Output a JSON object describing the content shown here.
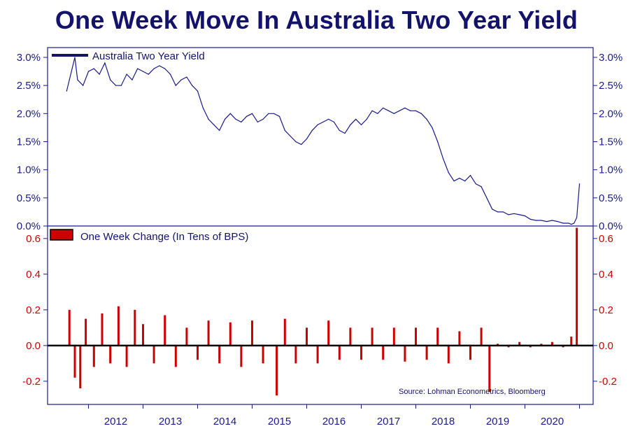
{
  "title": "One Week Move In Australia Two Year Yield",
  "source": "Source: Lohman Econometrics, Bloomberg",
  "colors": {
    "title": "#13136b",
    "axis": "#1a1a8c",
    "yield_line": "#1a1a8c",
    "bars": "#cc0000",
    "zero_line": "#000000",
    "lower_tick_labels": "#cc0000"
  },
  "chart_data": [
    {
      "type": "line",
      "panel": "top",
      "legend": "Australia Two Year Yield",
      "legend_position": "top-left",
      "ylim": [
        0,
        3.0
      ],
      "yticks": [
        "0.0%",
        "0.5%",
        "1.0%",
        "1.5%",
        "2.0%",
        "2.5%",
        "3.0%"
      ],
      "xlim": [
        2011.25,
        2021.25
      ],
      "xticks": [
        "2012",
        "2013",
        "2014",
        "2015",
        "2016",
        "2017",
        "2018",
        "2019",
        "2020"
      ],
      "x": [
        2011.6,
        2011.65,
        2011.7,
        2011.75,
        2011.8,
        2011.9,
        2012.0,
        2012.1,
        2012.2,
        2012.3,
        2012.4,
        2012.5,
        2012.6,
        2012.7,
        2012.8,
        2012.9,
        2013.0,
        2013.1,
        2013.2,
        2013.3,
        2013.4,
        2013.5,
        2013.6,
        2013.7,
        2013.8,
        2013.9,
        2014.0,
        2014.1,
        2014.2,
        2014.3,
        2014.4,
        2014.5,
        2014.6,
        2014.7,
        2014.8,
        2014.9,
        2015.0,
        2015.1,
        2015.2,
        2015.3,
        2015.4,
        2015.5,
        2015.6,
        2015.7,
        2015.8,
        2015.9,
        2016.0,
        2016.1,
        2016.2,
        2016.3,
        2016.4,
        2016.5,
        2016.6,
        2016.7,
        2016.8,
        2016.9,
        2017.0,
        2017.1,
        2017.2,
        2017.3,
        2017.4,
        2017.5,
        2017.6,
        2017.7,
        2017.8,
        2017.9,
        2018.0,
        2018.1,
        2018.2,
        2018.3,
        2018.4,
        2018.5,
        2018.6,
        2018.7,
        2018.8,
        2018.9,
        2019.0,
        2019.1,
        2019.2,
        2019.3,
        2019.4,
        2019.5,
        2019.6,
        2019.7,
        2019.8,
        2019.9,
        2020.0,
        2020.1,
        2020.2,
        2020.3,
        2020.4,
        2020.5,
        2020.6,
        2020.7,
        2020.8,
        2020.85,
        2020.9,
        2020.95,
        2021.0
      ],
      "y": [
        2.4,
        2.6,
        2.8,
        3.0,
        2.6,
        2.5,
        2.75,
        2.8,
        2.7,
        2.9,
        2.6,
        2.5,
        2.5,
        2.7,
        2.6,
        2.8,
        2.75,
        2.7,
        2.8,
        2.85,
        2.8,
        2.7,
        2.5,
        2.6,
        2.65,
        2.5,
        2.4,
        2.1,
        1.9,
        1.8,
        1.7,
        1.9,
        2.0,
        1.9,
        1.85,
        1.95,
        2.0,
        1.85,
        1.9,
        2.0,
        2.0,
        1.95,
        1.7,
        1.6,
        1.5,
        1.45,
        1.55,
        1.7,
        1.8,
        1.85,
        1.9,
        1.85,
        1.7,
        1.65,
        1.8,
        1.9,
        1.8,
        1.9,
        2.05,
        2.0,
        2.1,
        2.05,
        2.0,
        2.05,
        2.1,
        2.05,
        2.05,
        2.0,
        1.9,
        1.75,
        1.5,
        1.2,
        0.95,
        0.8,
        0.85,
        0.8,
        0.9,
        0.75,
        0.7,
        0.5,
        0.3,
        0.25,
        0.25,
        0.2,
        0.22,
        0.2,
        0.18,
        0.12,
        0.1,
        0.1,
        0.08,
        0.1,
        0.08,
        0.05,
        0.05,
        0.03,
        0.05,
        0.15,
        0.75
      ]
    },
    {
      "type": "bar",
      "panel": "bottom",
      "legend": "One Week Change (In Tens of BPS)",
      "legend_position": "top-left",
      "ylim": [
        -0.33,
        0.67
      ],
      "yticks": [
        "0.6",
        "0.4",
        "0.2",
        "0.0",
        "-0.2"
      ],
      "xlim": [
        2011.25,
        2021.25
      ],
      "x": [
        2011.65,
        2011.75,
        2011.85,
        2011.95,
        2012.1,
        2012.25,
        2012.4,
        2012.55,
        2012.7,
        2012.85,
        2013.0,
        2013.2,
        2013.4,
        2013.6,
        2013.8,
        2014.0,
        2014.2,
        2014.4,
        2014.6,
        2014.8,
        2015.0,
        2015.2,
        2015.45,
        2015.6,
        2015.8,
        2016.0,
        2016.2,
        2016.4,
        2016.6,
        2016.8,
        2017.0,
        2017.2,
        2017.4,
        2017.6,
        2017.8,
        2018.0,
        2018.2,
        2018.4,
        2018.6,
        2018.8,
        2019.0,
        2019.2,
        2019.35,
        2019.5,
        2019.7,
        2019.9,
        2020.1,
        2020.3,
        2020.5,
        2020.7,
        2020.85,
        2020.95
      ],
      "values": [
        0.2,
        -0.18,
        -0.24,
        0.15,
        -0.12,
        0.18,
        -0.1,
        0.22,
        -0.12,
        0.2,
        0.12,
        -0.1,
        0.17,
        -0.12,
        0.1,
        -0.08,
        0.14,
        -0.1,
        0.13,
        -0.12,
        0.14,
        -0.1,
        -0.28,
        0.15,
        -0.1,
        0.1,
        -0.1,
        0.14,
        -0.08,
        0.1,
        -0.08,
        0.1,
        -0.08,
        0.1,
        -0.09,
        0.1,
        -0.08,
        0.1,
        -0.1,
        0.08,
        -0.08,
        0.1,
        -0.26,
        0.01,
        -0.01,
        0.02,
        -0.01,
        0.01,
        0.02,
        -0.01,
        0.05,
        0.66
      ]
    }
  ]
}
